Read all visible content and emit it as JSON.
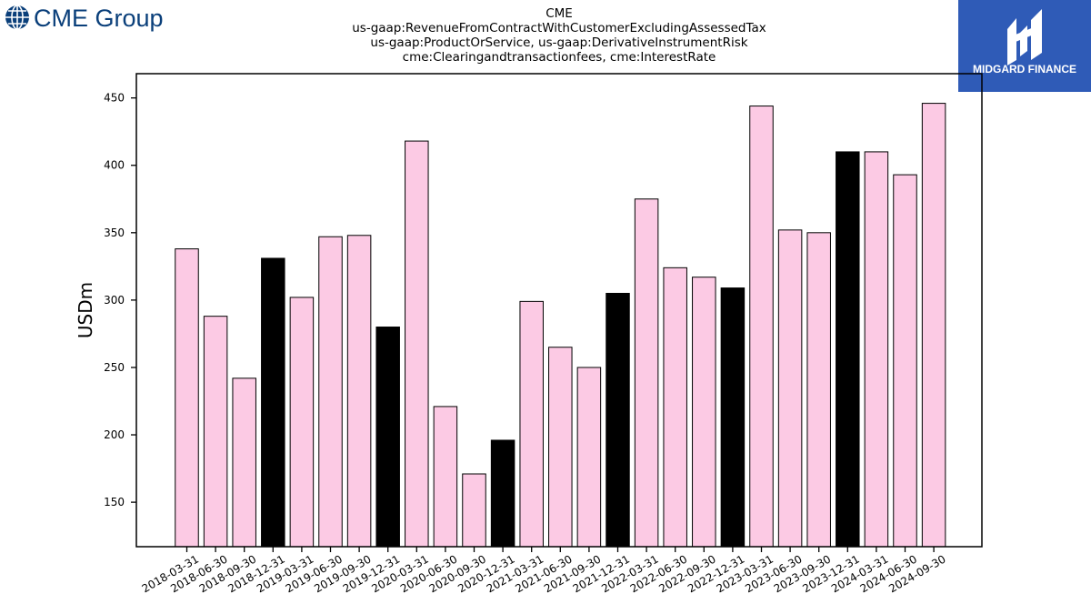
{
  "header": {
    "title_lines": [
      "CME",
      "us-gaap:RevenueFromContractWithCustomerExcludingAssessedTax",
      "us-gaap:ProductOrService, us-gaap:DerivativeInstrumentRisk",
      "cme:Clearingandtransactionfees, cme:InterestRate"
    ]
  },
  "logos": {
    "left": {
      "text": "CME Group",
      "color": "#0a3f7a",
      "icon": "globe-icon"
    },
    "right": {
      "text": "MIDGARD FINANCE",
      "color": "#2f5bb7",
      "icon": "midgard-mark-icon"
    }
  },
  "chart_data": {
    "type": "bar",
    "ylabel": "USDm",
    "xlabel": "",
    "ylim": [
      117,
      468
    ],
    "yticks": [
      150,
      200,
      250,
      300,
      350,
      400,
      450
    ],
    "colors": {
      "quarter": "#fccae4",
      "year_end": "#000000"
    },
    "categories": [
      "2018-03-31",
      "2018-06-30",
      "2018-09-30",
      "2018-12-31",
      "2019-03-31",
      "2019-06-30",
      "2019-09-30",
      "2019-12-31",
      "2020-03-31",
      "2020-06-30",
      "2020-09-30",
      "2020-12-31",
      "2021-03-31",
      "2021-06-30",
      "2021-09-30",
      "2021-12-31",
      "2022-03-31",
      "2022-06-30",
      "2022-09-30",
      "2022-12-31",
      "2023-03-31",
      "2023-06-30",
      "2023-09-30",
      "2023-12-31",
      "2024-03-31",
      "2024-06-30",
      "2024-09-30"
    ],
    "values": [
      338,
      288,
      242,
      331,
      302,
      347,
      348,
      280,
      418,
      221,
      171,
      196,
      299,
      265,
      250,
      305,
      375,
      324,
      317,
      309,
      444,
      352,
      350,
      410,
      410,
      393,
      446
    ],
    "highlight": [
      false,
      false,
      false,
      true,
      false,
      false,
      false,
      true,
      false,
      false,
      false,
      true,
      false,
      false,
      false,
      true,
      false,
      false,
      false,
      true,
      false,
      false,
      false,
      true,
      false,
      false,
      false
    ]
  }
}
